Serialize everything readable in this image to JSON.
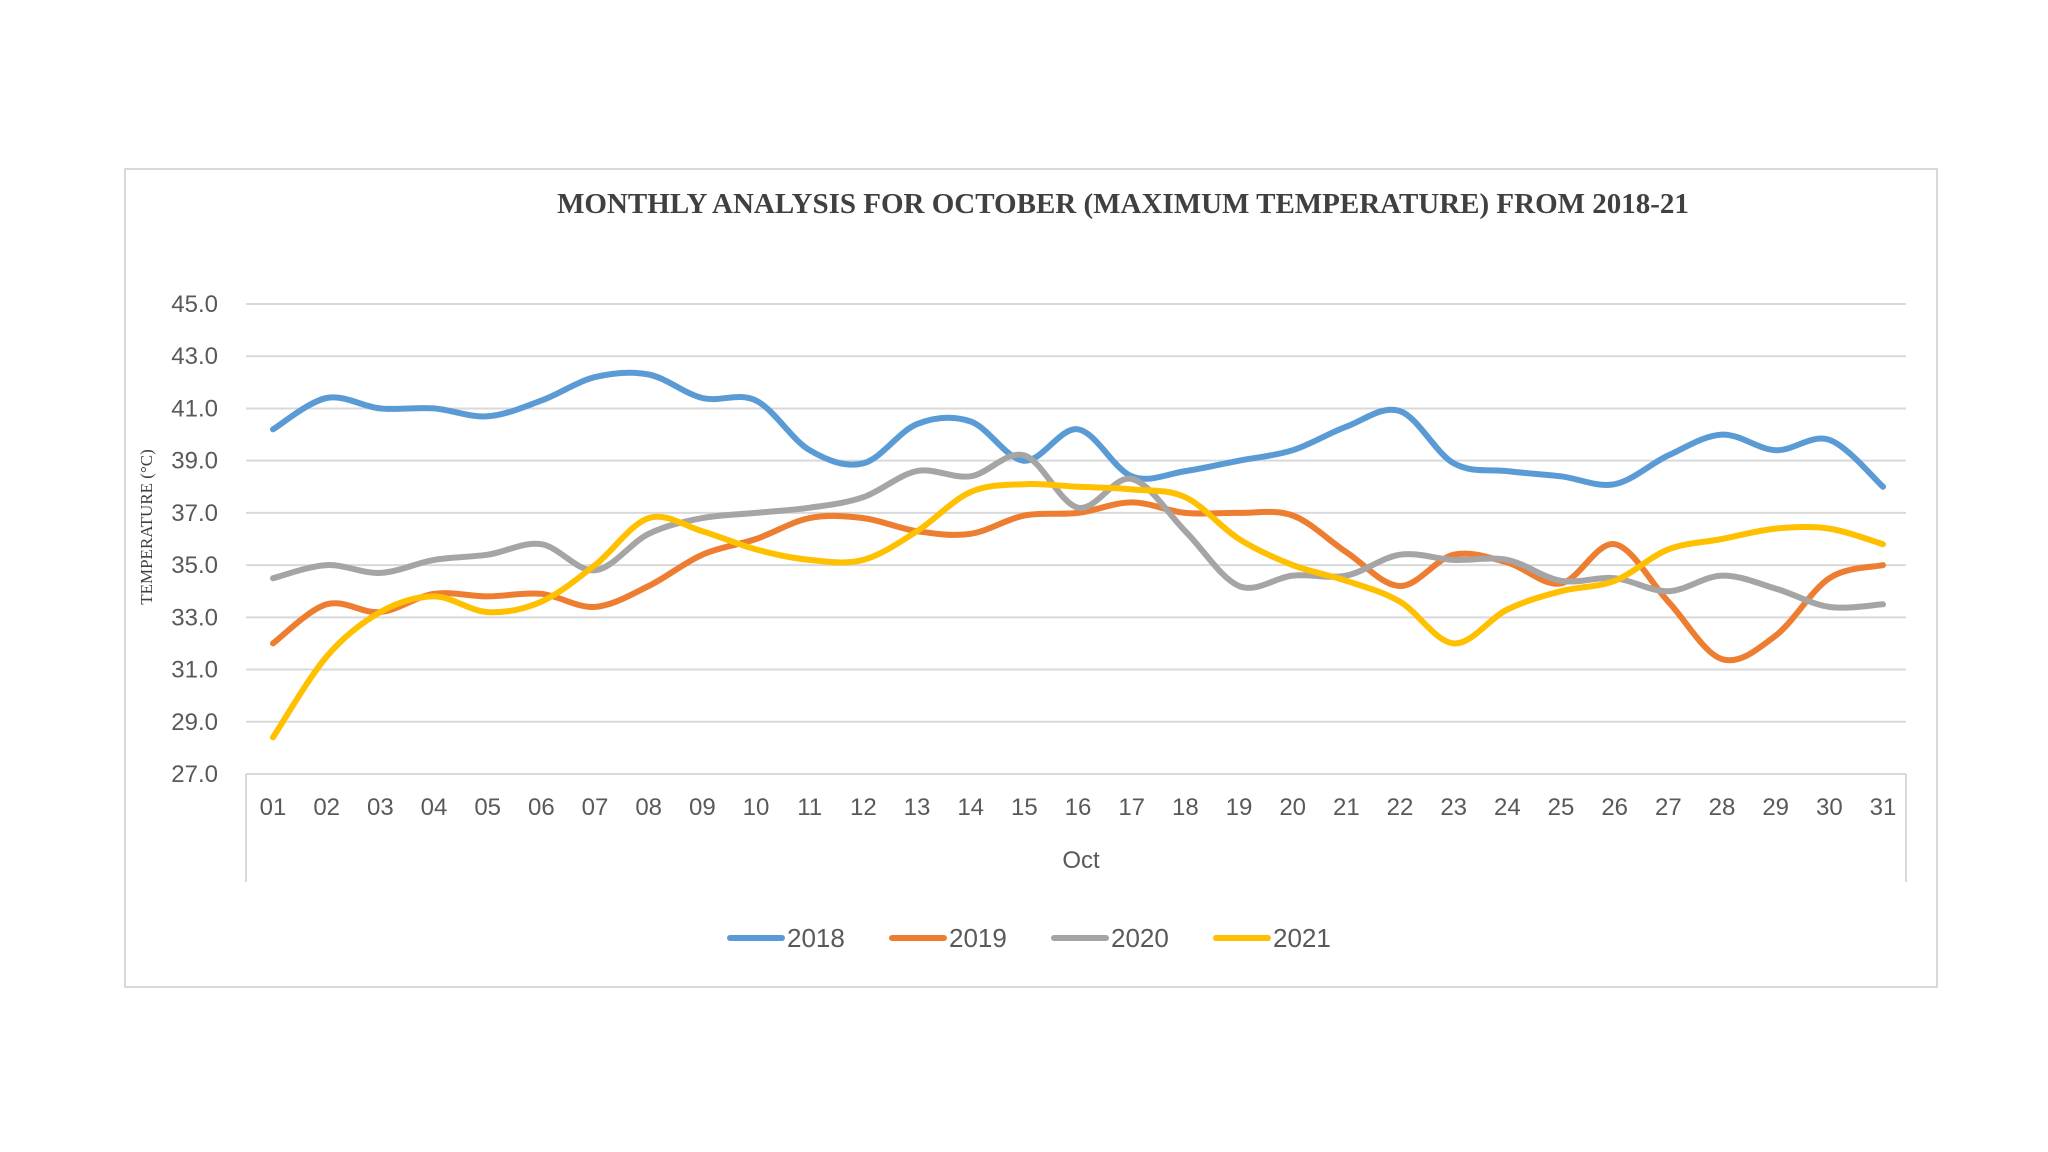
{
  "chart_data": {
    "type": "line",
    "title": "MONTHLY  ANALYSIS FOR OCTOBER (MAXIMUM  TEMPERATURE) FROM 2018-21",
    "xlabel": "Oct",
    "ylabel": "TEMPERATURE  (°C)",
    "ylim": [
      27.0,
      45.0
    ],
    "yticks": [
      "27.0",
      "29.0",
      "31.0",
      "33.0",
      "35.0",
      "37.0",
      "39.0",
      "41.0",
      "43.0",
      "45.0"
    ],
    "grid": true,
    "legend_position": "bottom",
    "categories": [
      "01",
      "02",
      "03",
      "04",
      "05",
      "06",
      "07",
      "08",
      "09",
      "10",
      "11",
      "12",
      "13",
      "14",
      "15",
      "16",
      "17",
      "18",
      "19",
      "20",
      "21",
      "22",
      "23",
      "24",
      "25",
      "26",
      "27",
      "28",
      "29",
      "30",
      "31"
    ],
    "series": [
      {
        "name": "2018",
        "color": "#5b9bd5",
        "values": [
          40.2,
          41.4,
          41.0,
          41.0,
          40.7,
          41.3,
          42.2,
          42.3,
          41.4,
          41.3,
          39.4,
          38.9,
          40.4,
          40.5,
          39.0,
          40.2,
          38.4,
          38.6,
          39.0,
          39.4,
          40.3,
          40.9,
          38.9,
          38.6,
          38.4,
          38.1,
          39.2,
          40.0,
          39.4,
          39.8,
          38.0
        ]
      },
      {
        "name": "2019",
        "color": "#ed7d31",
        "values": [
          32.0,
          33.5,
          33.2,
          33.9,
          33.8,
          33.9,
          33.4,
          34.2,
          35.4,
          36.0,
          36.8,
          36.8,
          36.3,
          36.2,
          36.9,
          37.0,
          37.4,
          37.0,
          37.0,
          36.9,
          35.5,
          34.2,
          35.4,
          35.1,
          34.3,
          35.8,
          33.6,
          31.4,
          32.3,
          34.5,
          35.0
        ]
      },
      {
        "name": "2020",
        "color": "#a5a5a5",
        "values": [
          34.5,
          35.0,
          34.7,
          35.2,
          35.4,
          35.8,
          34.8,
          36.2,
          36.8,
          37.0,
          37.2,
          37.6,
          38.6,
          38.4,
          39.2,
          37.2,
          38.3,
          36.3,
          34.2,
          34.6,
          34.6,
          35.4,
          35.2,
          35.2,
          34.4,
          34.5,
          34.0,
          34.6,
          34.1,
          33.4,
          33.5
        ]
      },
      {
        "name": "2021",
        "color": "#ffc000",
        "values": [
          28.4,
          31.5,
          33.2,
          33.8,
          33.2,
          33.6,
          35.0,
          36.8,
          36.3,
          35.6,
          35.2,
          35.2,
          36.3,
          37.8,
          38.1,
          38.0,
          37.9,
          37.6,
          36.0,
          35.0,
          34.4,
          33.6,
          32.0,
          33.3,
          34.0,
          34.4,
          35.6,
          36.0,
          36.4,
          36.4,
          35.8
        ]
      }
    ]
  }
}
